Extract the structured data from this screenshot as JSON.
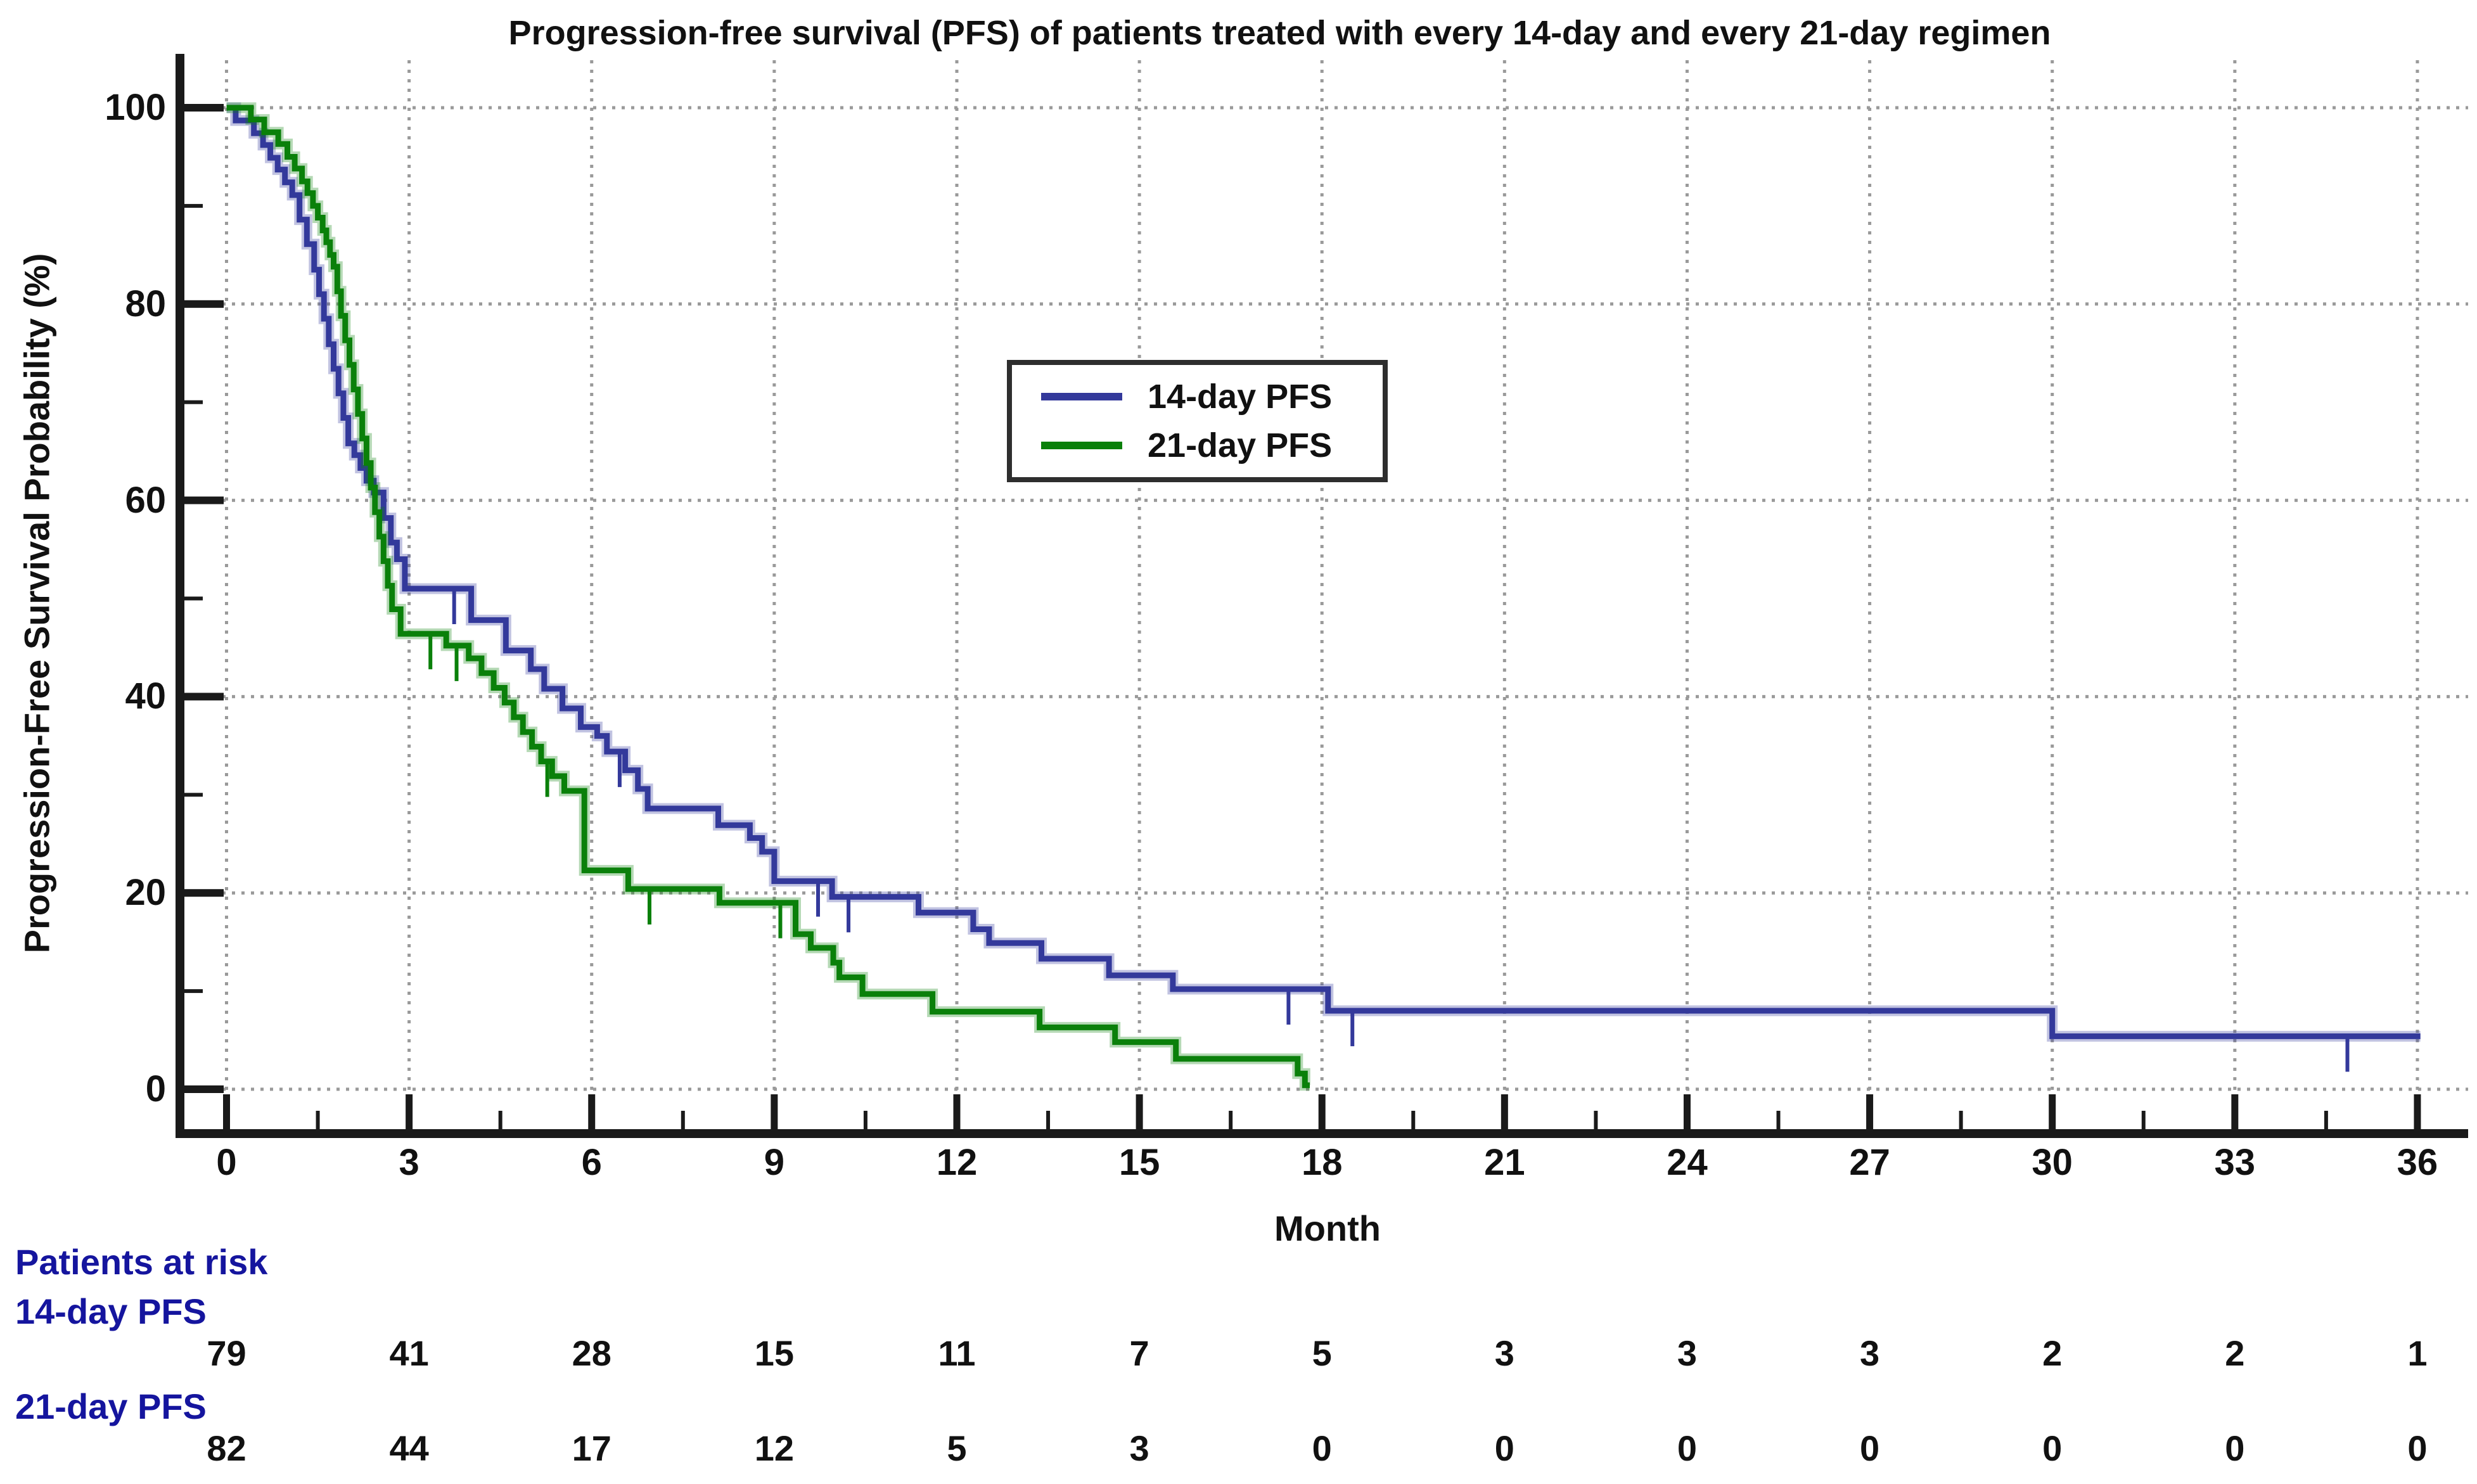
{
  "title": "Progression-free survival (PFS) of patients treated with every 14-day and every 21-day regimen",
  "axes": {
    "x": {
      "title": "Month",
      "min": 0,
      "max": 36,
      "major_ticks": [
        0,
        3,
        6,
        9,
        12,
        15,
        18,
        21,
        24,
        27,
        30,
        33,
        36
      ],
      "minor_tick_interval": 1.5,
      "gridlines": "dotted"
    },
    "y": {
      "title": "Progression-Free Survival Probability (%)",
      "min": 0,
      "max": 100,
      "major_ticks": [
        0,
        20,
        40,
        60,
        80,
        100
      ],
      "minor_ticks": [
        10,
        30,
        50,
        70,
        90
      ],
      "gridlines": "dotted"
    }
  },
  "legend": {
    "items": [
      {
        "label": "14-day PFS",
        "color": "#33399b"
      },
      {
        "label": "21-day PFS",
        "color": "#0a800a"
      }
    ],
    "position": "upper-center",
    "border_color": "#2e2e2e"
  },
  "at_risk": {
    "header": "Patients at risk",
    "months": [
      0,
      3,
      6,
      9,
      12,
      15,
      18,
      21,
      24,
      27,
      30,
      33,
      36
    ],
    "groups": [
      {
        "label": "14-day PFS",
        "counts": [
          79,
          41,
          28,
          15,
          11,
          7,
          5,
          3,
          3,
          3,
          2,
          2,
          1
        ]
      },
      {
        "label": "21-day PFS",
        "counts": [
          82,
          44,
          17,
          12,
          5,
          3,
          0,
          0,
          0,
          0,
          0,
          0,
          0
        ]
      }
    ]
  },
  "colors": {
    "series_14day": "#33399b",
    "series_21day": "#0a800a",
    "risk_label_text": "#15159e",
    "axis": "#1a1a1a",
    "grid": "#9a9a9a",
    "text": "#111111",
    "background": "#ffffff"
  },
  "chart_data": {
    "type": "line",
    "subtype": "kaplan-meier-step",
    "title": "Progression-free survival (PFS) of patients treated with every 14-day and every 21-day regimen",
    "xlabel": "Month",
    "ylabel": "Progression-Free Survival Probability (%)",
    "xlim": [
      0,
      36
    ],
    "ylim": [
      0,
      100
    ],
    "grid": "dotted-major",
    "legend_position": "upper-center-inset",
    "series": [
      {
        "name": "14-day PFS",
        "color": "#33399b",
        "end_month": 36.05,
        "steps": [
          [
            0,
            100
          ],
          [
            0.15,
            98.7
          ],
          [
            0.45,
            97.4
          ],
          [
            0.6,
            96.2
          ],
          [
            0.72,
            94.9
          ],
          [
            0.84,
            93.7
          ],
          [
            0.96,
            92.4
          ],
          [
            1.08,
            91.1
          ],
          [
            1.2,
            88.6
          ],
          [
            1.32,
            86.1
          ],
          [
            1.44,
            83.5
          ],
          [
            1.52,
            81.0
          ],
          [
            1.6,
            78.5
          ],
          [
            1.68,
            75.9
          ],
          [
            1.76,
            73.4
          ],
          [
            1.84,
            70.9
          ],
          [
            1.92,
            68.4
          ],
          [
            2.0,
            65.8
          ],
          [
            2.1,
            64.6
          ],
          [
            2.2,
            63.3
          ],
          [
            2.3,
            62.0
          ],
          [
            2.42,
            60.8
          ],
          [
            2.58,
            58.2
          ],
          [
            2.7,
            55.7
          ],
          [
            2.8,
            54.0
          ],
          [
            2.93,
            51.0
          ],
          [
            4.02,
            47.8
          ],
          [
            4.59,
            44.7
          ],
          [
            5.0,
            42.8
          ],
          [
            5.22,
            40.8
          ],
          [
            5.52,
            38.8
          ],
          [
            5.82,
            36.9
          ],
          [
            6.09,
            36.0
          ],
          [
            6.25,
            34.4
          ],
          [
            6.55,
            32.5
          ],
          [
            6.76,
            30.6
          ],
          [
            6.92,
            28.6
          ],
          [
            8.08,
            26.9
          ],
          [
            8.6,
            25.6
          ],
          [
            8.8,
            24.2
          ],
          [
            9.0,
            21.2
          ],
          [
            9.95,
            19.6
          ],
          [
            11.37,
            18.0
          ],
          [
            12.27,
            16.3
          ],
          [
            12.53,
            14.9
          ],
          [
            13.39,
            13.3
          ],
          [
            14.5,
            11.6
          ],
          [
            15.55,
            10.2
          ],
          [
            18.1,
            8.0
          ],
          [
            30.0,
            5.4
          ]
        ],
        "censor_marks": [
          [
            3.74,
            51.0
          ],
          [
            6.46,
            34.4
          ],
          [
            9.72,
            21.2
          ],
          [
            10.22,
            19.6
          ],
          [
            17.45,
            10.2
          ],
          [
            18.5,
            8.0
          ],
          [
            34.85,
            5.4
          ]
        ]
      },
      {
        "name": "21-day PFS",
        "color": "#0a800a",
        "end_month": 17.8,
        "steps": [
          [
            0,
            100
          ],
          [
            0.4,
            98.8
          ],
          [
            0.62,
            97.5
          ],
          [
            0.85,
            96.3
          ],
          [
            1.0,
            95.0
          ],
          [
            1.12,
            93.8
          ],
          [
            1.24,
            92.5
          ],
          [
            1.33,
            91.3
          ],
          [
            1.42,
            90.0
          ],
          [
            1.5,
            88.8
          ],
          [
            1.58,
            87.5
          ],
          [
            1.64,
            86.3
          ],
          [
            1.7,
            85.0
          ],
          [
            1.76,
            83.8
          ],
          [
            1.82,
            81.3
          ],
          [
            1.88,
            78.8
          ],
          [
            1.95,
            76.3
          ],
          [
            2.02,
            73.8
          ],
          [
            2.09,
            71.3
          ],
          [
            2.16,
            68.8
          ],
          [
            2.23,
            66.3
          ],
          [
            2.3,
            63.8
          ],
          [
            2.37,
            61.3
          ],
          [
            2.44,
            58.8
          ],
          [
            2.51,
            56.3
          ],
          [
            2.58,
            53.8
          ],
          [
            2.65,
            51.3
          ],
          [
            2.72,
            48.9
          ],
          [
            2.86,
            46.4
          ],
          [
            3.61,
            45.2
          ],
          [
            3.98,
            43.9
          ],
          [
            4.19,
            42.4
          ],
          [
            4.39,
            40.9
          ],
          [
            4.57,
            39.4
          ],
          [
            4.72,
            37.9
          ],
          [
            4.87,
            36.4
          ],
          [
            5.02,
            34.9
          ],
          [
            5.17,
            33.4
          ],
          [
            5.35,
            31.9
          ],
          [
            5.55,
            30.4
          ],
          [
            5.88,
            22.3
          ],
          [
            6.6,
            20.4
          ],
          [
            8.1,
            19.0
          ],
          [
            9.35,
            15.8
          ],
          [
            9.6,
            14.4
          ],
          [
            9.97,
            12.9
          ],
          [
            10.07,
            11.4
          ],
          [
            10.45,
            9.7
          ],
          [
            11.6,
            7.9
          ],
          [
            13.36,
            6.3
          ],
          [
            14.6,
            4.8
          ],
          [
            15.6,
            3.1
          ],
          [
            17.6,
            1.6
          ],
          [
            17.72,
            0.4
          ]
        ],
        "censor_marks": [
          [
            3.35,
            46.4
          ],
          [
            3.78,
            45.2
          ],
          [
            5.27,
            33.4
          ],
          [
            6.95,
            20.4
          ],
          [
            9.1,
            19.0
          ]
        ]
      }
    ],
    "at_risk_table": {
      "header": "Patients at risk",
      "months": [
        0,
        3,
        6,
        9,
        12,
        15,
        18,
        21,
        24,
        27,
        30,
        33,
        36
      ],
      "rows": [
        {
          "name": "14-day PFS",
          "counts": [
            79,
            41,
            28,
            15,
            11,
            7,
            5,
            3,
            3,
            3,
            2,
            2,
            1
          ]
        },
        {
          "name": "21-day PFS",
          "counts": [
            82,
            44,
            17,
            12,
            5,
            3,
            0,
            0,
            0,
            0,
            0,
            0,
            0
          ]
        }
      ]
    }
  }
}
